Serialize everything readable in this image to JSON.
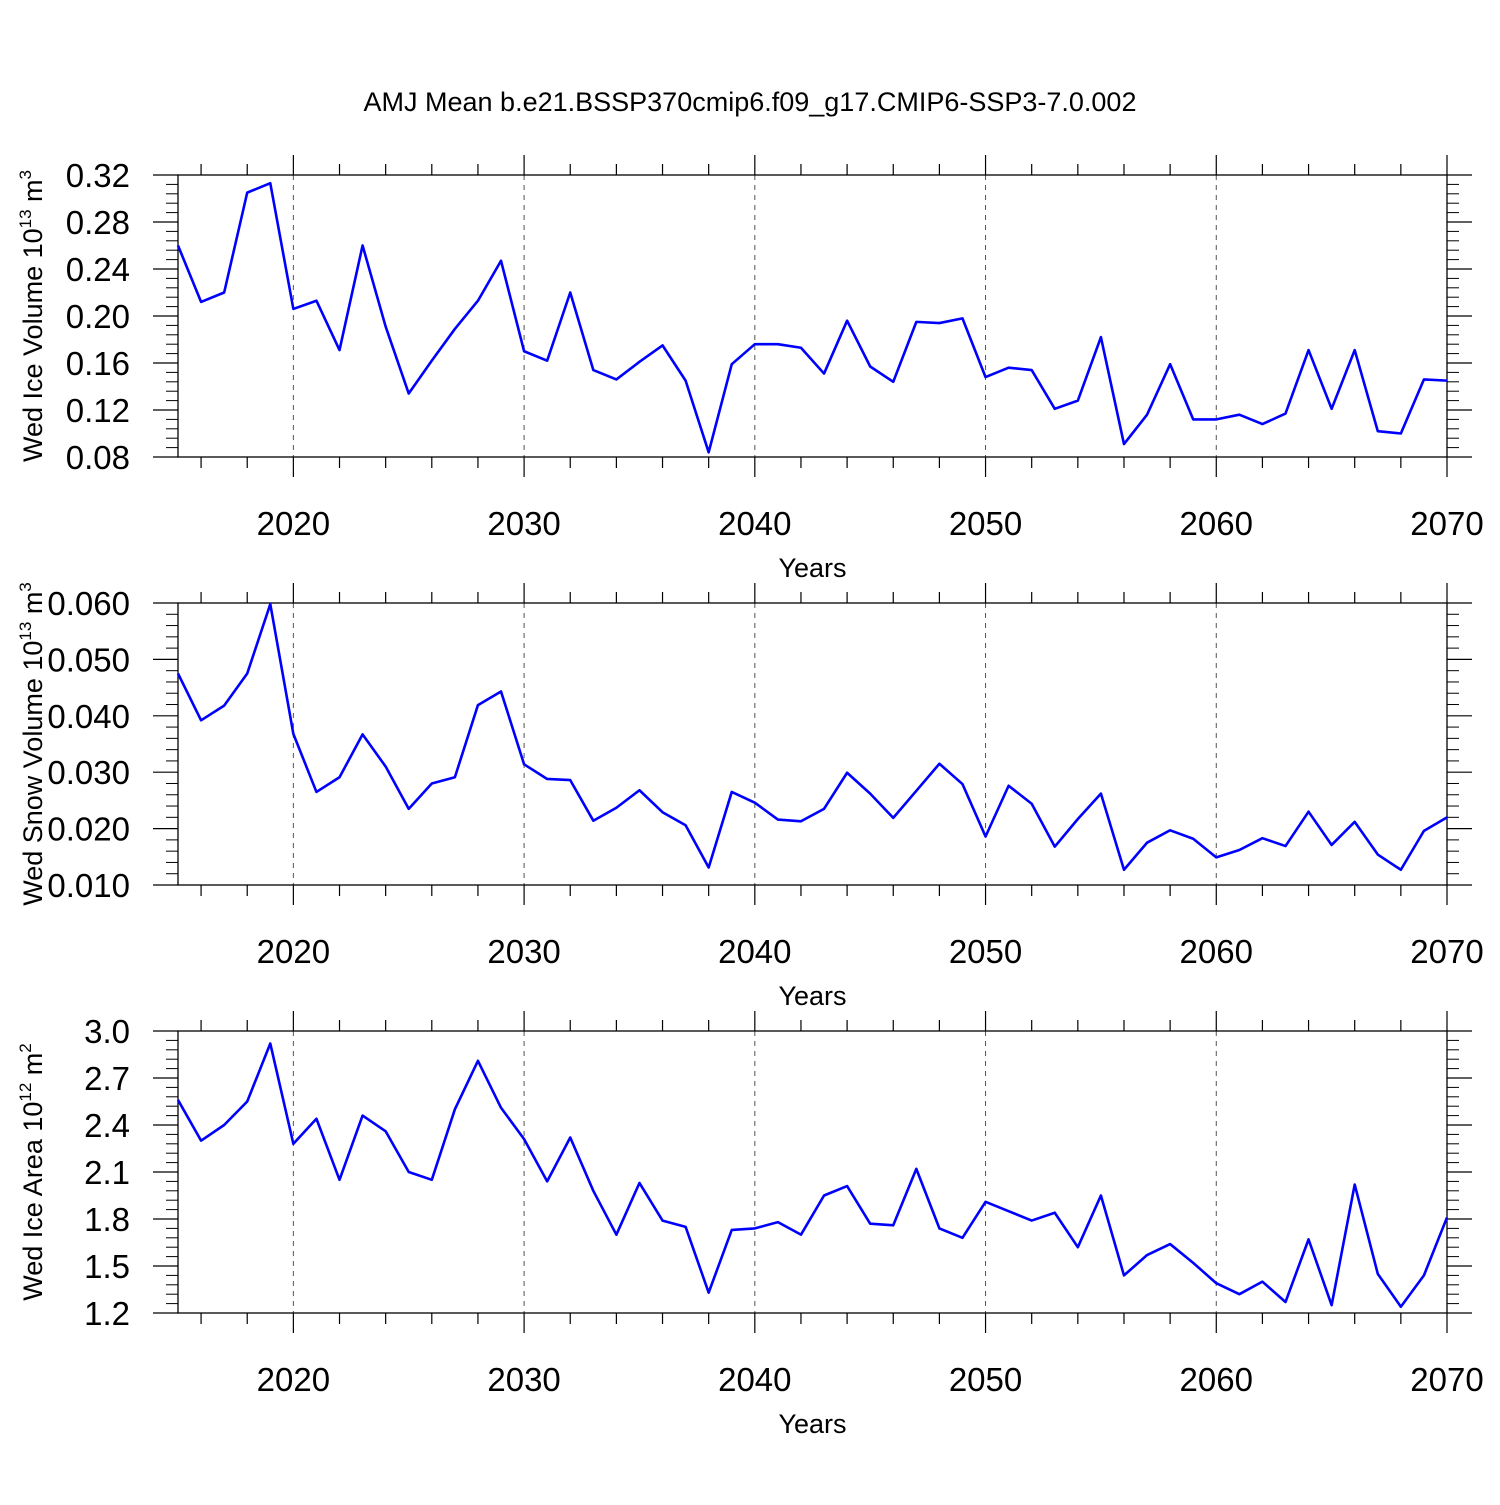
{
  "title": "AMJ Mean b.e21.BSSP370cmip6.f09_g17.CMIP6-SSP3-7.0.002",
  "colors": {
    "line": "#0000ff",
    "axis": "#000000",
    "grid": "#555555"
  },
  "chart_data": [
    {
      "type": "line",
      "ylabel": {
        "text": "Wed Ice Volume 10",
        "exp": "13",
        "unit": " m",
        "unit_exp": "3"
      },
      "xlabel": "Years",
      "xlim": [
        2015,
        2070
      ],
      "ylim": [
        0.08,
        0.32
      ],
      "yticks": [
        "0.08",
        "0.12",
        "0.16",
        "0.20",
        "0.24",
        "0.28",
        "0.32"
      ],
      "xticks": [
        "2020",
        "2030",
        "2040",
        "2050",
        "2060",
        "2070"
      ],
      "grid": "x-dashed",
      "x": [
        2015,
        2016,
        2017,
        2018,
        2019,
        2020,
        2021,
        2022,
        2023,
        2024,
        2025,
        2026,
        2027,
        2028,
        2029,
        2030,
        2031,
        2032,
        2033,
        2034,
        2035,
        2036,
        2037,
        2038,
        2039,
        2040,
        2041,
        2042,
        2043,
        2044,
        2045,
        2046,
        2047,
        2048,
        2049,
        2050,
        2051,
        2052,
        2053,
        2054,
        2055,
        2056,
        2057,
        2058,
        2059,
        2060,
        2061,
        2062,
        2063,
        2064,
        2065,
        2066,
        2067,
        2068,
        2069,
        2070
      ],
      "values": [
        0.26,
        0.212,
        0.22,
        0.305,
        0.313,
        0.206,
        0.213,
        0.171,
        0.26,
        0.191,
        0.134,
        0.162,
        0.189,
        0.213,
        0.247,
        0.17,
        0.162,
        0.22,
        0.154,
        0.146,
        0.161,
        0.175,
        0.145,
        0.084,
        0.159,
        0.176,
        0.176,
        0.173,
        0.151,
        0.196,
        0.157,
        0.144,
        0.195,
        0.194,
        0.198,
        0.148,
        0.156,
        0.154,
        0.121,
        0.128,
        0.182,
        0.091,
        0.116,
        0.159,
        0.112,
        0.112,
        0.116,
        0.108,
        0.117,
        0.171,
        0.121,
        0.171,
        0.102,
        0.1,
        0.146,
        0.145
      ]
    },
    {
      "type": "line",
      "ylabel": {
        "text": "Wed Snow Volume 10",
        "exp": "13",
        "unit": " m",
        "unit_exp": "3"
      },
      "xlabel": "Years",
      "xlim": [
        2015,
        2070
      ],
      "ylim": [
        0.01,
        0.06
      ],
      "yticks": [
        "0.010",
        "0.020",
        "0.030",
        "0.040",
        "0.050",
        "0.060"
      ],
      "xticks": [
        "2020",
        "2030",
        "2040",
        "2050",
        "2060",
        "2070"
      ],
      "grid": "x-dashed",
      "x": [
        2015,
        2016,
        2017,
        2018,
        2019,
        2020,
        2021,
        2022,
        2023,
        2024,
        2025,
        2026,
        2027,
        2028,
        2029,
        2030,
        2031,
        2032,
        2033,
        2034,
        2035,
        2036,
        2037,
        2038,
        2039,
        2040,
        2041,
        2042,
        2043,
        2044,
        2045,
        2046,
        2047,
        2048,
        2049,
        2050,
        2051,
        2052,
        2053,
        2054,
        2055,
        2056,
        2057,
        2058,
        2059,
        2060,
        2061,
        2062,
        2063,
        2064,
        2065,
        2066,
        2067,
        2068,
        2069,
        2070
      ],
      "values": [
        0.0475,
        0.0392,
        0.0418,
        0.0475,
        0.0598,
        0.0368,
        0.0265,
        0.0291,
        0.0367,
        0.031,
        0.0235,
        0.028,
        0.0291,
        0.0419,
        0.0443,
        0.0314,
        0.0288,
        0.0286,
        0.0214,
        0.0237,
        0.0268,
        0.0229,
        0.0206,
        0.0131,
        0.0265,
        0.0246,
        0.0216,
        0.0213,
        0.0235,
        0.0299,
        0.0262,
        0.0219,
        0.0267,
        0.0315,
        0.0279,
        0.0186,
        0.0276,
        0.0244,
        0.0168,
        0.0217,
        0.0262,
        0.0127,
        0.0175,
        0.0197,
        0.0182,
        0.0149,
        0.0162,
        0.0183,
        0.0169,
        0.023,
        0.0171,
        0.0212,
        0.0154,
        0.0127,
        0.0196,
        0.022
      ]
    },
    {
      "type": "line",
      "ylabel": {
        "text": "Wed Ice Area 10",
        "exp": "12",
        "unit": " m",
        "unit_exp": "2"
      },
      "xlabel": "Years",
      "xlim": [
        2015,
        2070
      ],
      "ylim": [
        1.2,
        3.0
      ],
      "yticks": [
        "1.2",
        "1.5",
        "1.8",
        "2.1",
        "2.4",
        "2.7",
        "3.0"
      ],
      "xticks": [
        "2020",
        "2030",
        "2040",
        "2050",
        "2060",
        "2070"
      ],
      "grid": "x-dashed",
      "x": [
        2015,
        2016,
        2017,
        2018,
        2019,
        2020,
        2021,
        2022,
        2023,
        2024,
        2025,
        2026,
        2027,
        2028,
        2029,
        2030,
        2031,
        2032,
        2033,
        2034,
        2035,
        2036,
        2037,
        2038,
        2039,
        2040,
        2041,
        2042,
        2043,
        2044,
        2045,
        2046,
        2047,
        2048,
        2049,
        2050,
        2051,
        2052,
        2053,
        2054,
        2055,
        2056,
        2057,
        2058,
        2059,
        2060,
        2061,
        2062,
        2063,
        2064,
        2065,
        2066,
        2067,
        2068,
        2069,
        2070
      ],
      "values": [
        2.56,
        2.3,
        2.4,
        2.55,
        2.92,
        2.28,
        2.44,
        2.05,
        2.46,
        2.36,
        2.1,
        2.05,
        2.5,
        2.81,
        2.51,
        2.31,
        2.04,
        2.32,
        1.98,
        1.7,
        2.03,
        1.79,
        1.75,
        1.33,
        1.73,
        1.74,
        1.78,
        1.7,
        1.95,
        2.01,
        1.77,
        1.76,
        2.12,
        1.74,
        1.68,
        1.91,
        1.85,
        1.79,
        1.84,
        1.62,
        1.95,
        1.44,
        1.57,
        1.64,
        1.52,
        1.39,
        1.32,
        1.4,
        1.27,
        1.67,
        1.25,
        2.02,
        1.45,
        1.24,
        1.44,
        1.81
      ]
    }
  ]
}
